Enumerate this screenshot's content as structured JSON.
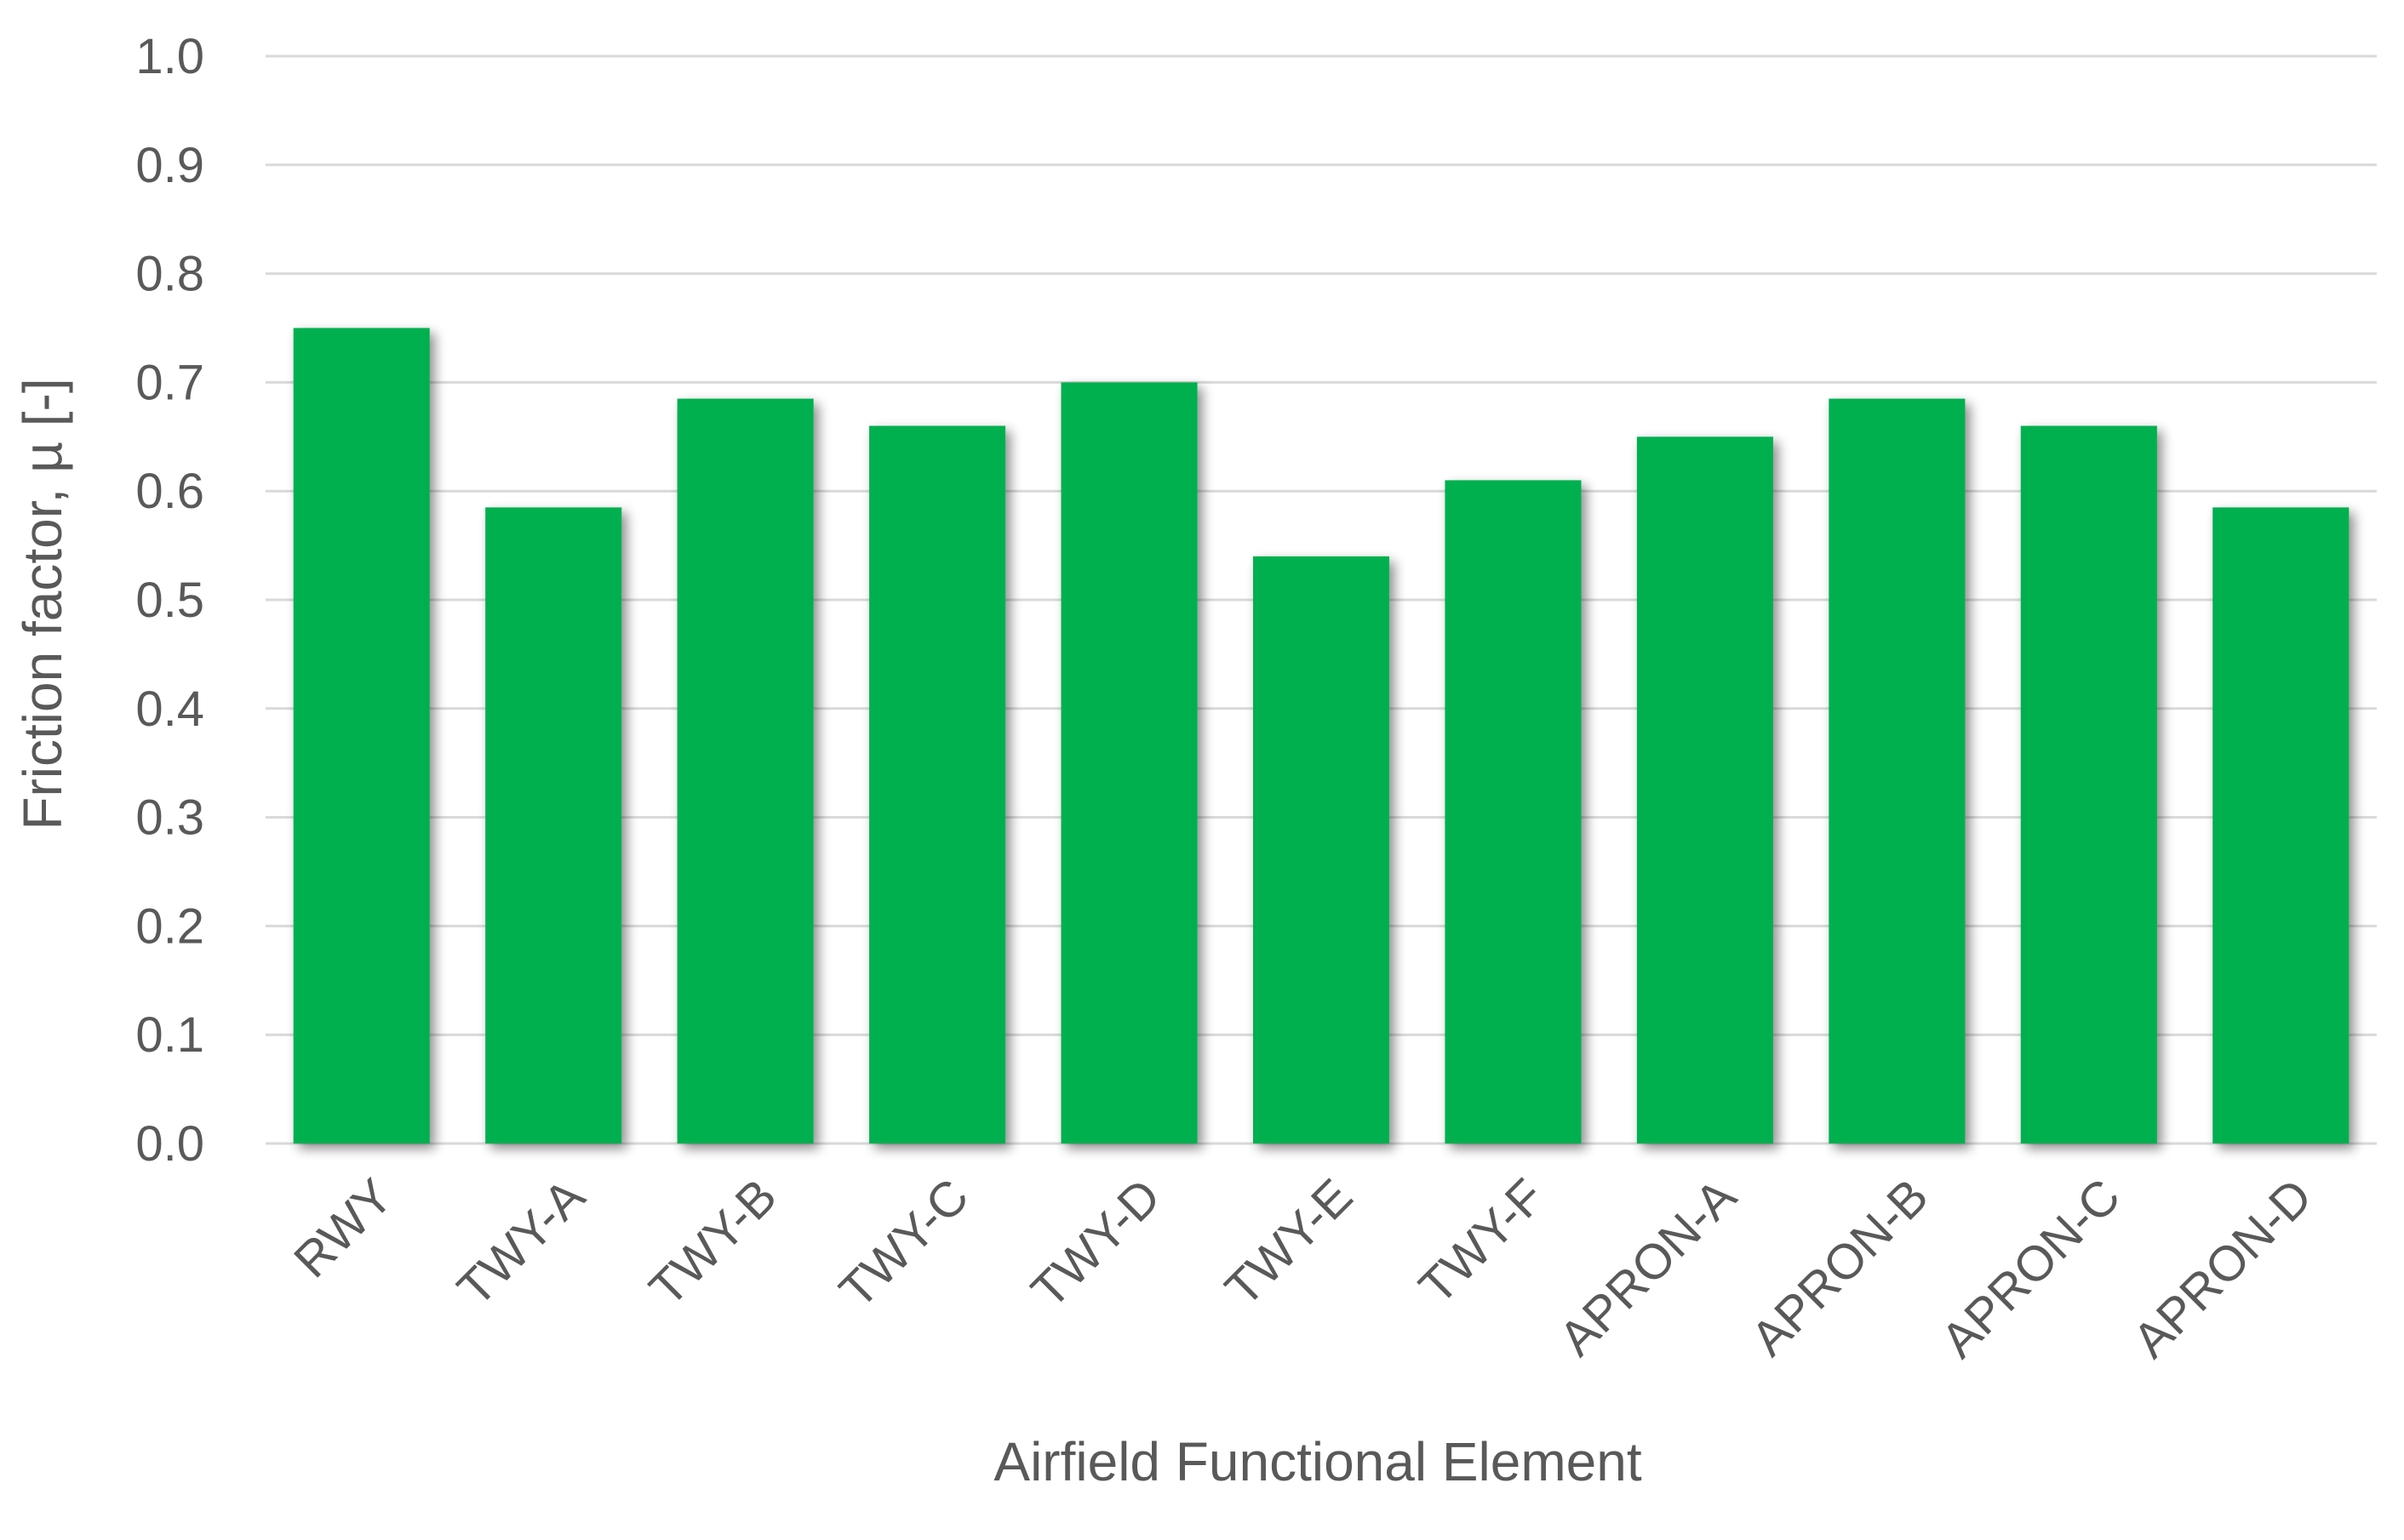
{
  "chart_data": {
    "type": "bar",
    "xlabel": "Airfield Functional Element",
    "ylabel": "Friction factor, µ [-]",
    "categories": [
      "RWY",
      "TWY-A",
      "TWY-B",
      "TWY-C",
      "TWY-D",
      "TWY-E",
      "TWY-F",
      "APRON-A",
      "APRON-B",
      "APRON-C",
      "APRON-D"
    ],
    "values": [
      0.75,
      0.585,
      0.685,
      0.66,
      0.7,
      0.54,
      0.61,
      0.65,
      0.685,
      0.66,
      0.585
    ],
    "ylim": [
      0.0,
      1.0
    ],
    "yticks": [
      "0.0",
      "0.1",
      "0.2",
      "0.3",
      "0.4",
      "0.5",
      "0.6",
      "0.7",
      "0.8",
      "0.9",
      "1.0"
    ],
    "grid": true,
    "legend": false,
    "bar_color": "#00b04f",
    "grid_color": "#d9d9d9",
    "text_color": "#595959"
  }
}
